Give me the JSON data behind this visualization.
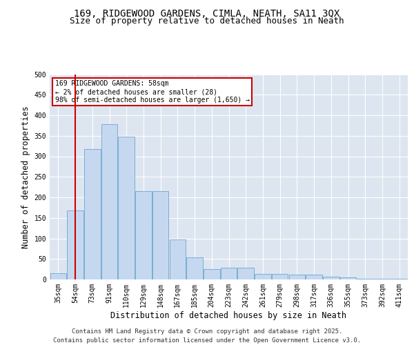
{
  "title_line1": "169, RIDGEWOOD GARDENS, CIMLA, NEATH, SA11 3QX",
  "title_line2": "Size of property relative to detached houses in Neath",
  "xlabel": "Distribution of detached houses by size in Neath",
  "ylabel": "Number of detached properties",
  "categories": [
    "35sqm",
    "54sqm",
    "73sqm",
    "91sqm",
    "110sqm",
    "129sqm",
    "148sqm",
    "167sqm",
    "185sqm",
    "204sqm",
    "223sqm",
    "242sqm",
    "261sqm",
    "279sqm",
    "298sqm",
    "317sqm",
    "336sqm",
    "355sqm",
    "373sqm",
    "392sqm",
    "411sqm"
  ],
  "bar_heights": [
    15,
    168,
    318,
    378,
    348,
    215,
    215,
    97,
    53,
    25,
    28,
    28,
    13,
    13,
    11,
    11,
    7,
    5,
    2,
    2,
    1
  ],
  "bar_color": "#c5d8f0",
  "bar_edge_color": "#7aadd4",
  "property_line_x": 1,
  "property_line_color": "#cc0000",
  "annotation_text": "169 RIDGEWOOD GARDENS: 58sqm\n← 2% of detached houses are smaller (28)\n98% of semi-detached houses are larger (1,650) →",
  "annotation_box_color": "#cc0000",
  "ylim": [
    0,
    500
  ],
  "yticks": [
    0,
    50,
    100,
    150,
    200,
    250,
    300,
    350,
    400,
    450,
    500
  ],
  "background_color": "#dde5f0",
  "grid_color": "#ffffff",
  "footer_text": "Contains HM Land Registry data © Crown copyright and database right 2025.\nContains public sector information licensed under the Open Government Licence v3.0.",
  "title_fontsize": 10,
  "subtitle_fontsize": 9,
  "tick_fontsize": 7,
  "label_fontsize": 8.5,
  "footer_fontsize": 6.5
}
